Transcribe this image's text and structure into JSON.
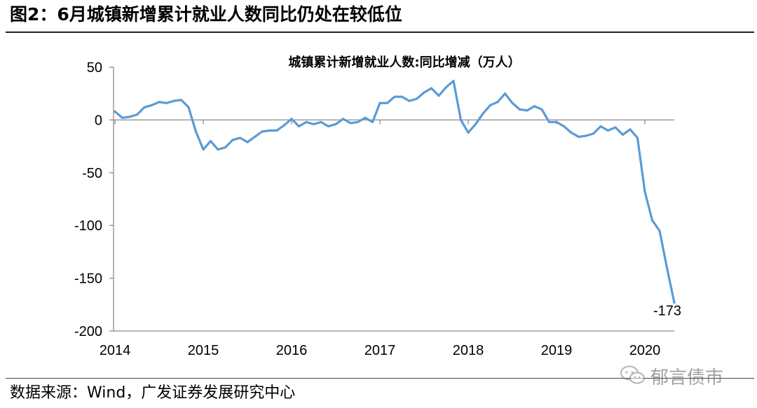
{
  "header": {
    "figure_title": "图2：6月城镇新增累计就业人数同比仍处在较低位"
  },
  "source": {
    "text": "数据来源：Wind，广发证券发展研究中心"
  },
  "watermark": {
    "text": "郁言债市",
    "icon": "wechat-icon"
  },
  "chart_data": {
    "type": "line",
    "title": "城镇累计新增就业人数:同比增减（万人）",
    "xlabel": "",
    "ylabel": "",
    "ylim": [
      -200,
      50
    ],
    "yticks": [
      50,
      0,
      -50,
      -100,
      -150,
      -200
    ],
    "xticks": [
      "2014",
      "2015",
      "2016",
      "2017",
      "2018",
      "2019",
      "2020"
    ],
    "grid": false,
    "legend": "none",
    "series_color": "#5b9bd5",
    "series": [
      {
        "values": [
          8,
          2,
          3,
          5,
          12,
          14,
          17,
          16,
          18,
          19,
          12,
          -11,
          -28,
          -20,
          -28,
          -26,
          -19,
          -17,
          -21,
          -16,
          -11,
          -10,
          -10,
          -5,
          1,
          -6,
          -2,
          -4,
          -2,
          -6,
          -4,
          1,
          -3,
          -2,
          2,
          -2,
          16,
          16,
          22,
          22,
          18,
          20,
          26,
          30,
          23,
          31,
          37,
          0,
          -12,
          -4,
          6,
          14,
          17,
          25,
          16,
          10,
          9,
          13,
          10,
          -2,
          -2,
          -6,
          -12,
          -16,
          -15,
          -13,
          -6,
          -10,
          -7,
          -14,
          -9,
          -17,
          -68,
          -95,
          -105,
          -140,
          -173
        ],
        "label_last": "-173"
      }
    ]
  }
}
